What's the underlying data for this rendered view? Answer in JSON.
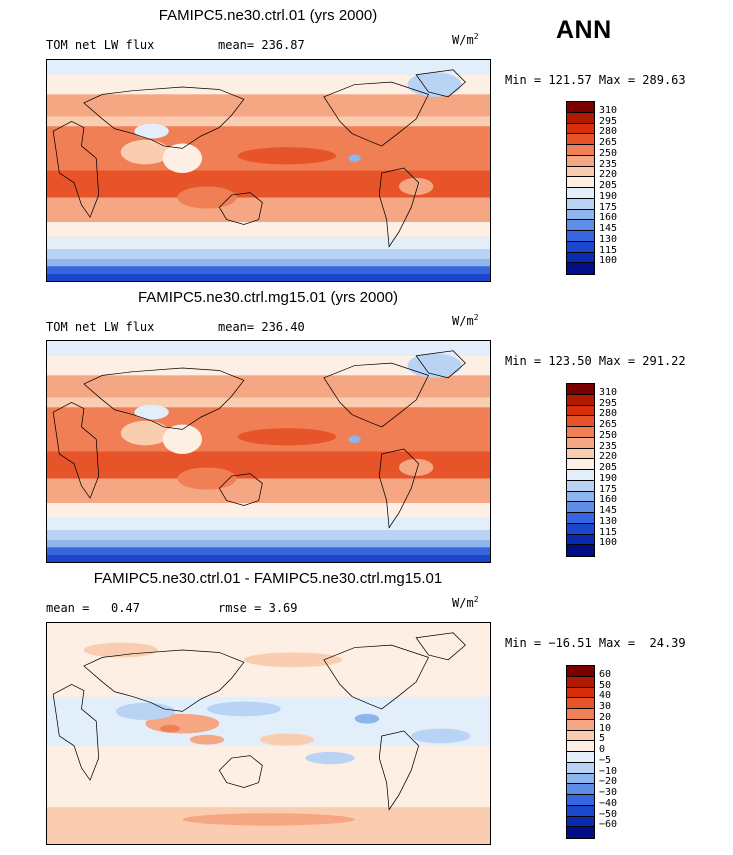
{
  "season": "ANN",
  "units_base": "W/m",
  "units_exp": "2",
  "panels": [
    {
      "title": "FAMIPC5.ne30.ctrl.01 (yrs 2000)",
      "left_label": "TOM net LW flux",
      "stat_label": "mean=",
      "stat_value": "236.87",
      "minmax_text": "Min = 121.57 Max = 289.63",
      "field": "absolute"
    },
    {
      "title": "FAMIPC5.ne30.ctrl.mg15.01 (yrs 2000)",
      "left_label": "TOM net LW flux",
      "stat_label": "mean=",
      "stat_value": "236.40",
      "minmax_text": "Min = 123.50 Max = 291.22",
      "field": "absolute"
    },
    {
      "title": "FAMIPC5.ne30.ctrl.01 - FAMIPC5.ne30.ctrl.mg15.01",
      "left_label": "mean =   0.47",
      "stat_label": "rmse =",
      "stat_value": "3.69",
      "minmax_text": "Min = −16.51 Max =  24.39",
      "field": "difference"
    }
  ],
  "colorbars": {
    "absolute": {
      "colors": [
        "#7a0000",
        "#b01a00",
        "#d92e0c",
        "#e8542a",
        "#f07f55",
        "#f5a683",
        "#fbcdb0",
        "#fdefe4",
        "#e3eefb",
        "#b9d3f4",
        "#8db5ee",
        "#5f8ee6",
        "#3666df",
        "#1a47cc",
        "#0a2ab0",
        "#000f85"
      ],
      "labels": [
        "310",
        "295",
        "280",
        "265",
        "250",
        "235",
        "220",
        "205",
        "190",
        "175",
        "160",
        "145",
        "130",
        "115",
        "100"
      ]
    },
    "difference": {
      "colors": [
        "#7a0000",
        "#b01a00",
        "#d92e0c",
        "#e8542a",
        "#f07f55",
        "#f5a683",
        "#fbcdb0",
        "#fdefe4",
        "#e3eefb",
        "#b9d3f4",
        "#8db5ee",
        "#5f8ee6",
        "#3666df",
        "#1a47cc",
        "#0a2ab0",
        "#000f85"
      ],
      "labels": [
        "60",
        "50",
        "40",
        "30",
        "20",
        "10",
        "5",
        "0",
        "−5",
        "−10",
        "−20",
        "−30",
        "−40",
        "−50",
        "−60"
      ]
    }
  }
}
